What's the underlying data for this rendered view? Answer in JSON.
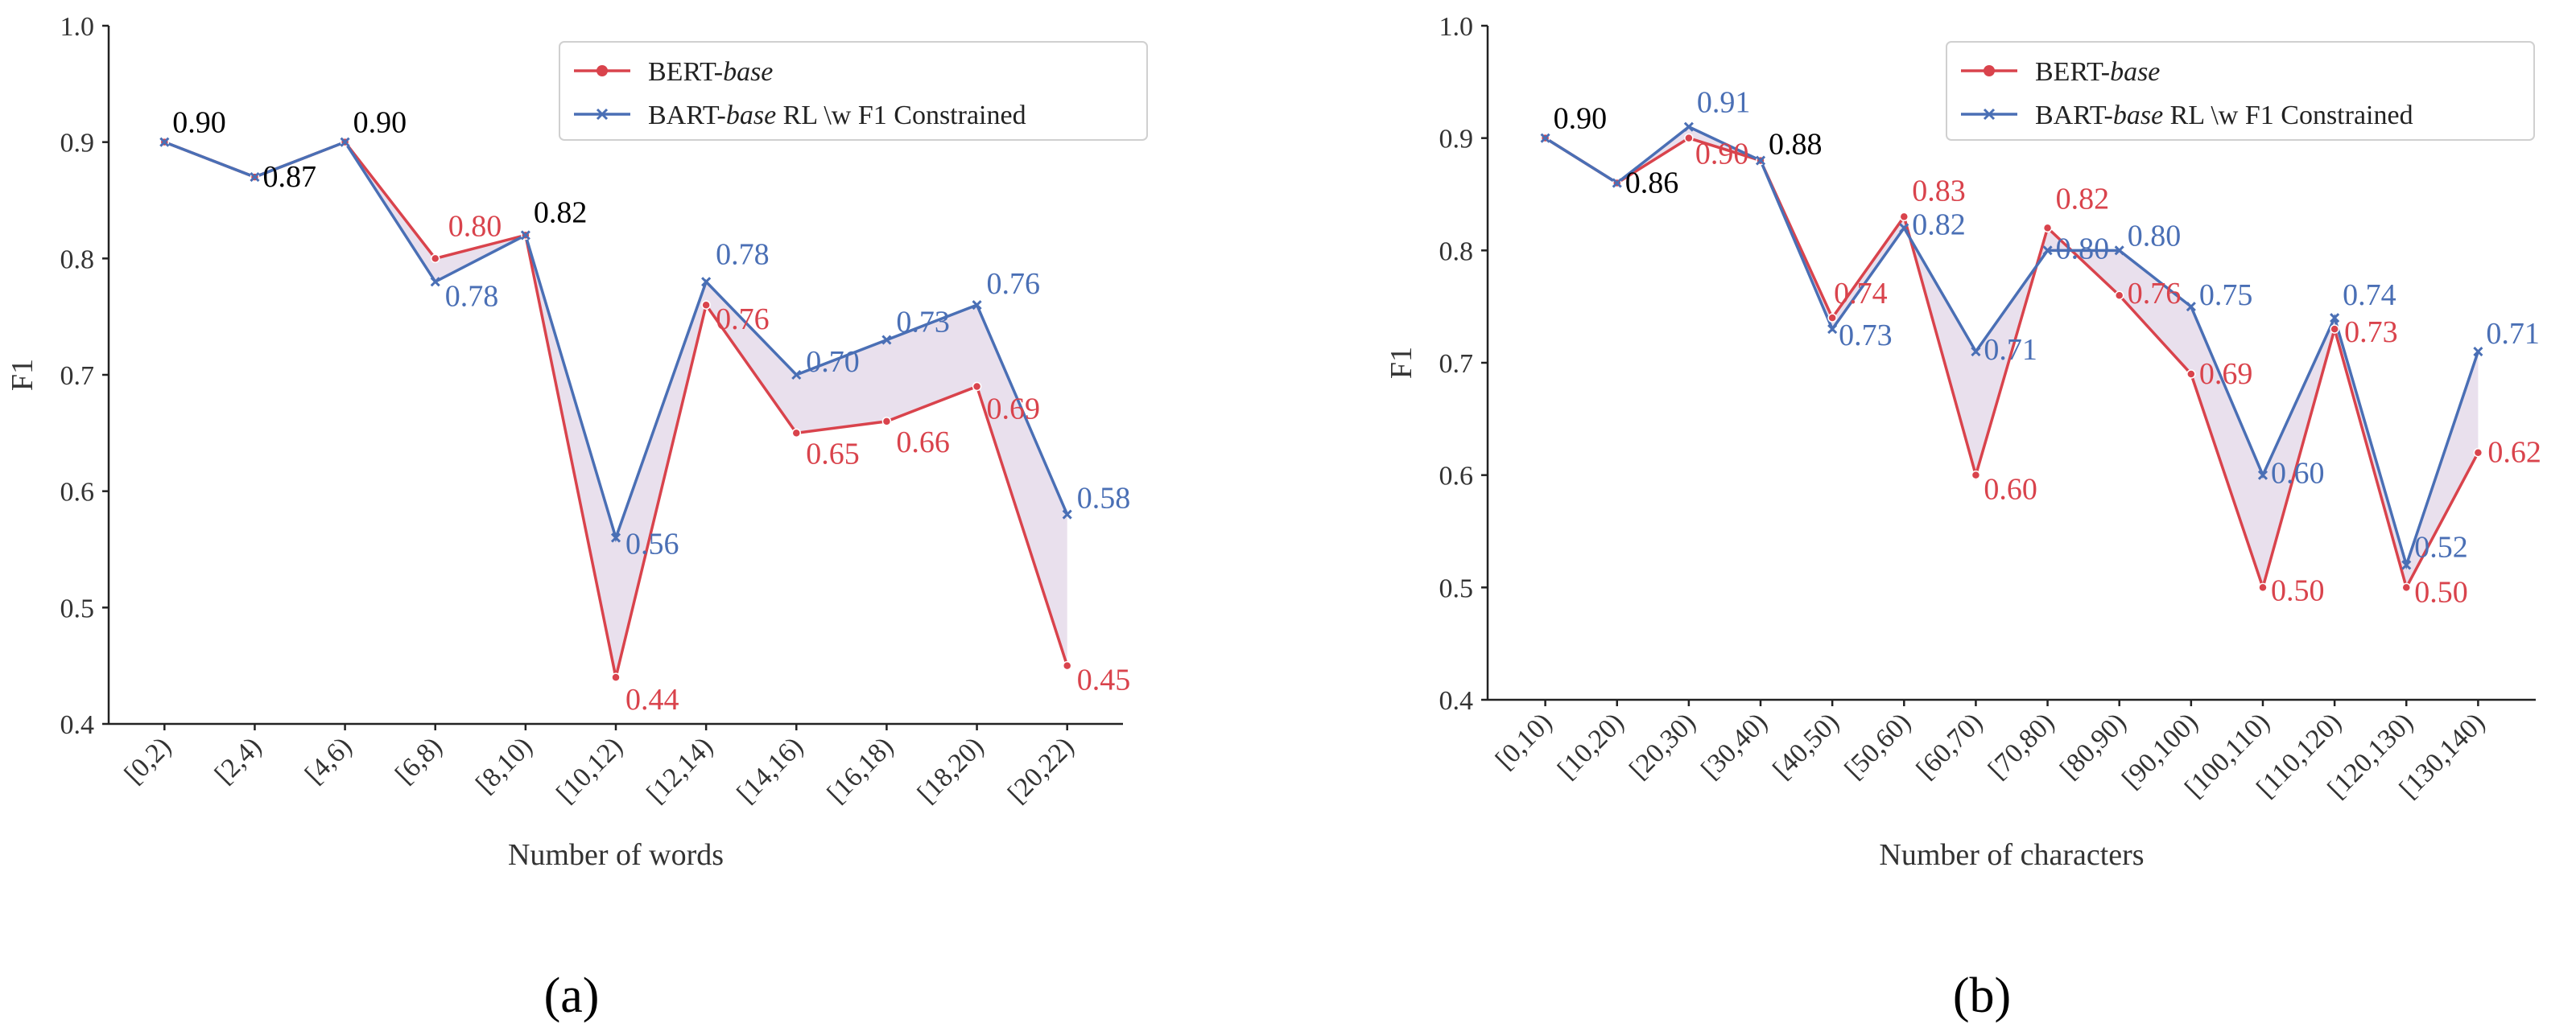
{
  "colors": {
    "bert": "#d9434c",
    "bart": "#4a6fb5",
    "tie": "#000000",
    "fill": "#e4d8e8"
  },
  "legend": {
    "bert_prefix": "BERT-",
    "bert_italic": "base",
    "bart_prefix": "BART-",
    "bart_italic": "base",
    "bart_suffix": " RL \\w F1 Constrained"
  },
  "chart_data": [
    {
      "type": "line",
      "panel_caption": "(a)",
      "xlabel": "Number of words",
      "ylabel": "F1",
      "ylim": [
        0.4,
        1.0
      ],
      "yticks": [
        "0.4",
        "0.5",
        "0.6",
        "0.7",
        "0.8",
        "0.9",
        "1.0"
      ],
      "categories": [
        "[0,2)",
        "[2,4)",
        "[4,6)",
        "[6,8)",
        "[8,10)",
        "[10,12)",
        "[12,14)",
        "[14,16)",
        "[16,18)",
        "[18,20)",
        "[20,22)"
      ],
      "series": [
        {
          "name": "BERT-base",
          "values": [
            0.9,
            0.87,
            0.9,
            0.8,
            0.82,
            0.44,
            0.76,
            0.65,
            0.66,
            0.69,
            0.45
          ]
        },
        {
          "name": "BART-base RL \\w F1 Constrained",
          "values": [
            0.9,
            0.87,
            0.9,
            0.78,
            0.82,
            0.56,
            0.78,
            0.7,
            0.73,
            0.76,
            0.58
          ]
        }
      ],
      "data_labels": {
        "bert": [
          "0.90",
          "0.87",
          "0.90",
          "0.80",
          "0.82",
          "0.44",
          "0.76",
          "0.65",
          "0.66",
          "0.69",
          "0.45"
        ],
        "bart": [
          "0.90",
          "0.87",
          "0.90",
          "0.78",
          "0.82",
          "0.56",
          "0.78",
          "0.70",
          "0.73",
          "0.76",
          "0.58"
        ]
      }
    },
    {
      "type": "line",
      "panel_caption": "(b)",
      "xlabel": "Number of characters",
      "ylabel": "F1",
      "ylim": [
        0.4,
        1.0
      ],
      "yticks": [
        "0.4",
        "0.5",
        "0.6",
        "0.7",
        "0.8",
        "0.9",
        "1.0"
      ],
      "categories": [
        "[0,10)",
        "[10,20)",
        "[20,30)",
        "[30,40)",
        "[40,50)",
        "[50,60)",
        "[60,70)",
        "[70,80)",
        "[80,90)",
        "[90,100)",
        "[100,110)",
        "[110,120)",
        "[120,130)",
        "[130,140)"
      ],
      "series": [
        {
          "name": "BERT-base",
          "values": [
            0.9,
            0.86,
            0.9,
            0.88,
            0.74,
            0.83,
            0.6,
            0.82,
            0.76,
            0.69,
            0.5,
            0.73,
            0.5,
            0.62
          ]
        },
        {
          "name": "BART-base RL \\w F1 Constrained",
          "values": [
            0.9,
            0.86,
            0.91,
            0.88,
            0.73,
            0.82,
            0.71,
            0.8,
            0.8,
            0.75,
            0.6,
            0.74,
            0.52,
            0.71
          ]
        }
      ],
      "data_labels": {
        "bert": [
          "0.90",
          "0.86",
          "0.90",
          "0.88",
          "0.74",
          "0.83",
          "0.60",
          "0.82",
          "0.76",
          "0.69",
          "0.50",
          "0.73",
          "0.50",
          "0.62"
        ],
        "bart": [
          "0.90",
          "0.86",
          "0.91",
          "0.88",
          "0.73",
          "0.82",
          "0.71",
          "0.80",
          "0.80",
          "0.75",
          "0.60",
          "0.74",
          "0.52",
          "0.71"
        ]
      }
    }
  ]
}
